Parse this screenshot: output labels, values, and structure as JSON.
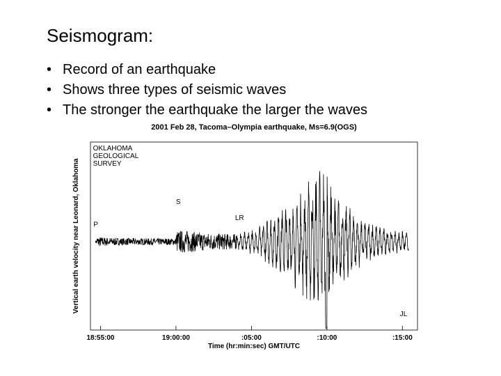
{
  "slide": {
    "title": "Seismogram:",
    "bullets": [
      "Record of an earthquake",
      "Shows three  types of seismic waves",
      "The stronger the earthquake the larger the waves"
    ]
  },
  "chart_data": {
    "type": "line",
    "title": "2001 Feb 28, Tacoma–Olympia earthquake, Ms=6.9(OGS)",
    "xlabel": "Time (hr:min:sec) GMT/UTC",
    "ylabel": "Vertical earth velocity near Leonard, Oklahoma",
    "x_ticks": [
      {
        "value": 0,
        "label": "18:55:00"
      },
      {
        "value": 300,
        "label": "19:00:00"
      },
      {
        "value": 600,
        "label": ":05:00"
      },
      {
        "value": 900,
        "label": ":10:00"
      },
      {
        "value": 1200,
        "label": ":15:00"
      }
    ],
    "xlim": [
      -40,
      1260
    ],
    "ylim": [
      -1,
      1
    ],
    "annotations": [
      {
        "label": "OKLAHOMA",
        "x": -30,
        "y": 0.91
      },
      {
        "label": "GEOLOGICAL",
        "x": -30,
        "y": 0.83
      },
      {
        "label": "SURVEY",
        "x": -30,
        "y": 0.75
      },
      {
        "label": "P",
        "x": -28,
        "y": 0.1
      },
      {
        "label": "S",
        "x": 300,
        "y": 0.34
      },
      {
        "label": "LR",
        "x": 535,
        "y": 0.17
      },
      {
        "label": "JL",
        "x": 1190,
        "y": -0.85
      }
    ],
    "phases": [
      {
        "name": "P",
        "onset": -15
      },
      {
        "name": "S",
        "onset": 300
      },
      {
        "name": "LR",
        "onset": 540
      }
    ],
    "line_color": "#000000",
    "grid": false
  }
}
